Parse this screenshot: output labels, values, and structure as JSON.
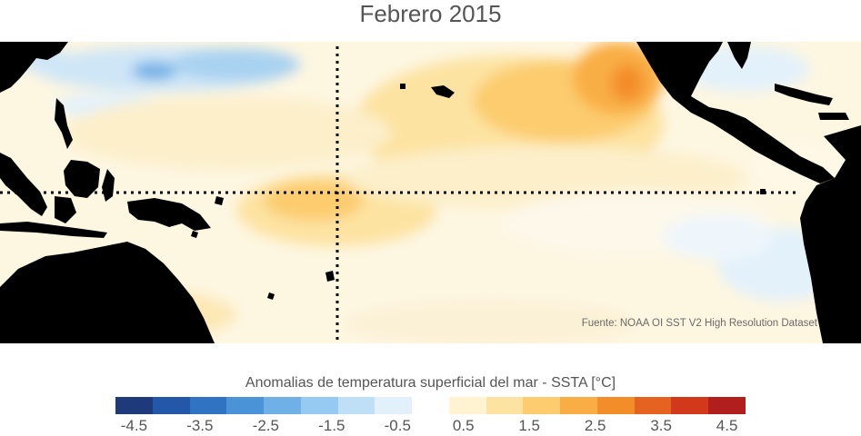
{
  "title": "Febrero 2015",
  "source": "Fuente: NOAA OI SST V2 High Resolution Dataset",
  "colorbar": {
    "label": "Anomalias de temperatura superficial del mar - SSTA  [°C]",
    "colors": [
      "#1f3a7a",
      "#2457a8",
      "#2f73c2",
      "#4a93d6",
      "#6fb0e6",
      "#97caf0",
      "#bfdff6",
      "#e2f0fa",
      "#ffffff",
      "#fff3d2",
      "#fde3a2",
      "#fccc6e",
      "#f9ae45",
      "#f38d2a",
      "#e66220",
      "#d2381a",
      "#b01f1c"
    ],
    "ticks": [
      "-4.5",
      "-3.5",
      "-2.5",
      "-1.5",
      "-0.5",
      "0.5",
      "1.5",
      "2.5",
      "3.5",
      "4.5"
    ]
  },
  "map": {
    "land_color": "#000000",
    "ocean_base_color": "#fdf6e1",
    "reference_lines": [
      "equator",
      "date-line"
    ]
  }
}
